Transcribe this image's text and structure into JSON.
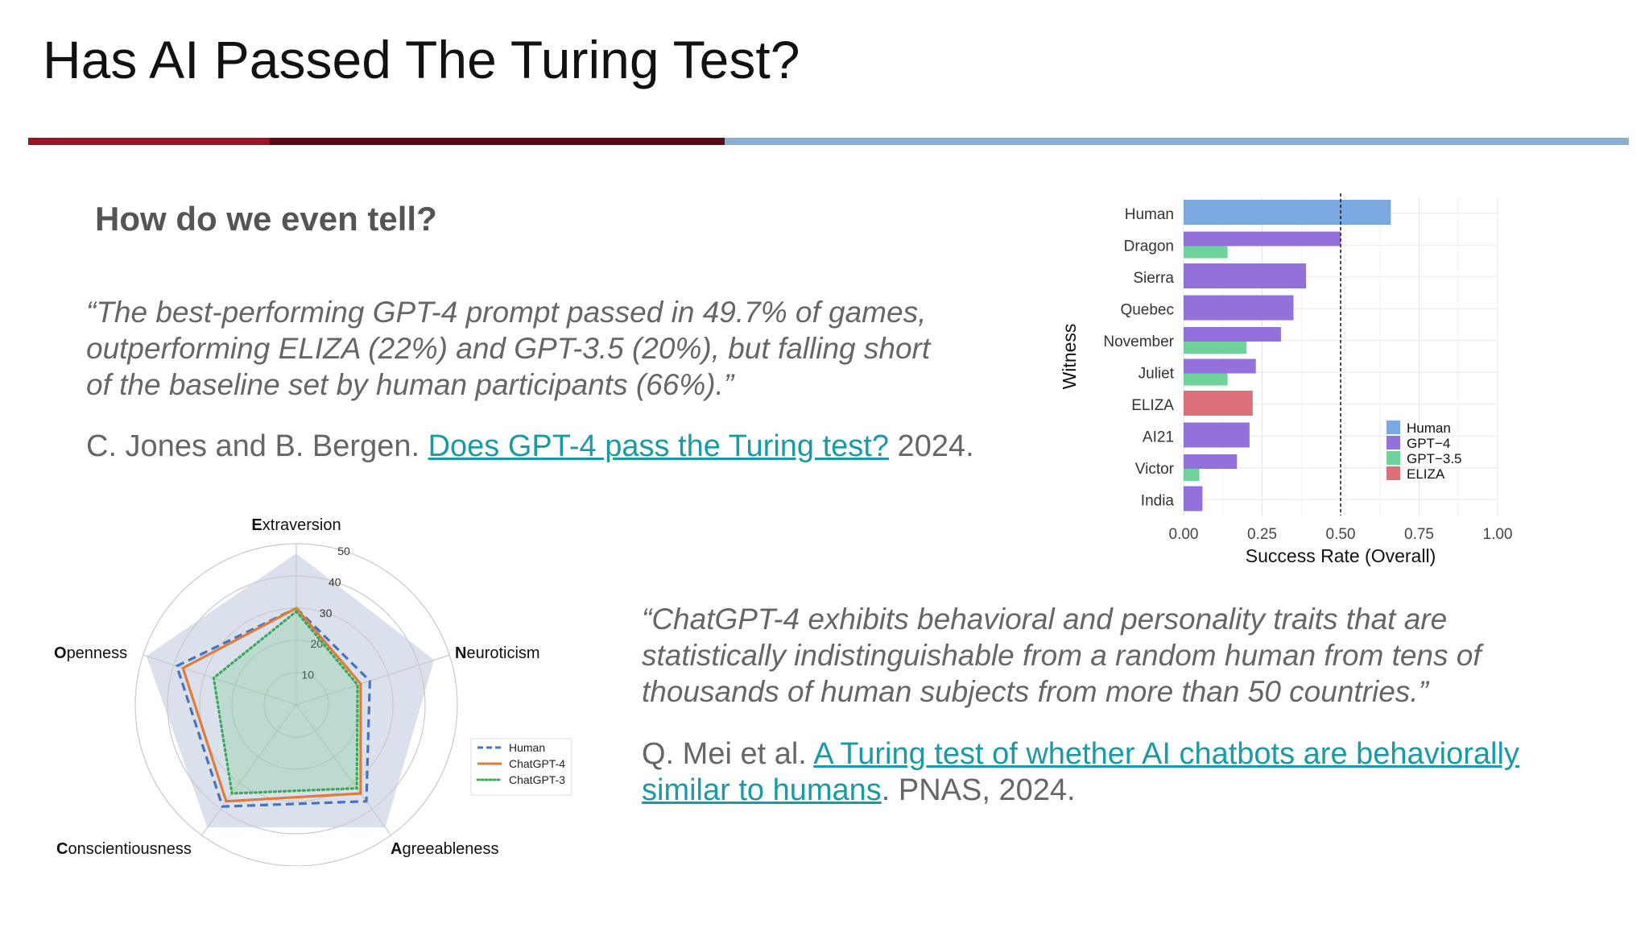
{
  "slide": {
    "title": "Has AI Passed The Turing Test?",
    "subtitle": "How do we even tell?",
    "colors": {
      "rule_red": "#9b1226",
      "rule_dark": "#5a0a12",
      "rule_blue": "#8aaed0",
      "link": "#1a9aa3"
    }
  },
  "quote1": {
    "lines": [
      "“The best-performing GPT-4 prompt passed in 49.7% of games,",
      "outperforming ELIZA (22%) and GPT-3.5 (20%), but falling short",
      "of the baseline set by human participants (66%).”"
    ],
    "cite_pre": "C. Jones and B. Bergen. ",
    "cite_link": "Does GPT-4 pass the Turing test?",
    "cite_post": " 2024."
  },
  "quote2": {
    "lines": [
      "“ChatGPT-4 exhibits behavioral and personality traits that are",
      "statistically indistinguishable from a random human from tens of",
      "thousands of human subjects from more than 50 countries.”"
    ],
    "cite_pre": "Q. Mei et al. ",
    "cite_link_1": "A Turing test of whether AI chatbots are behaviorally",
    "cite_link_2": "similar to humans",
    "cite_post": ". PNAS, 2024."
  },
  "chart_data": [
    {
      "type": "bar",
      "orientation": "horizontal",
      "xlabel": "Success Rate (Overall)",
      "ylabel": "Witness",
      "xlim": [
        0,
        1
      ],
      "xticks": [
        "0.00",
        "0.25",
        "0.50",
        "0.75",
        "1.00"
      ],
      "reference_line": 0.5,
      "grid": true,
      "legend_position": "right",
      "legend": [
        {
          "name": "Human",
          "color": "#7aa9e0"
        },
        {
          "name": "GPT−4",
          "color": "#9370db"
        },
        {
          "name": "GPT−3.5",
          "color": "#6dd39a"
        },
        {
          "name": "ELIZA",
          "color": "#dc7079"
        }
      ],
      "categories": [
        "Human",
        "Dragon",
        "Sierra",
        "Quebec",
        "November",
        "Juliet",
        "ELIZA",
        "AI21",
        "Victor",
        "India"
      ],
      "bars": [
        {
          "witness": "Human",
          "model": "Human",
          "value": 0.66
        },
        {
          "witness": "Dragon",
          "model": "GPT−4",
          "value": 0.5
        },
        {
          "witness": "Dragon",
          "model": "GPT−3.5",
          "value": 0.14
        },
        {
          "witness": "Sierra",
          "model": "GPT−4",
          "value": 0.39
        },
        {
          "witness": "Quebec",
          "model": "GPT−4",
          "value": 0.35
        },
        {
          "witness": "November",
          "model": "GPT−4",
          "value": 0.31
        },
        {
          "witness": "November",
          "model": "GPT−3.5",
          "value": 0.2
        },
        {
          "witness": "Juliet",
          "model": "GPT−4",
          "value": 0.23
        },
        {
          "witness": "Juliet",
          "model": "GPT−3.5",
          "value": 0.14
        },
        {
          "witness": "ELIZA",
          "model": "ELIZA",
          "value": 0.22
        },
        {
          "witness": "AI21",
          "model": "GPT−4",
          "value": 0.21
        },
        {
          "witness": "Victor",
          "model": "GPT−4",
          "value": 0.17
        },
        {
          "witness": "Victor",
          "model": "GPT−3.5",
          "value": 0.05
        },
        {
          "witness": "India",
          "model": "GPT−4",
          "value": 0.06
        }
      ]
    },
    {
      "type": "radar",
      "axes": [
        "Extraversion",
        "Neuroticism",
        "Agreeableness",
        "Conscientiousness",
        "Openness"
      ],
      "rlim": [
        0,
        50
      ],
      "rticks": [
        "10",
        "20",
        "30",
        "40",
        "50"
      ],
      "legend_position": "right",
      "shaded_range": {
        "values": [
          47,
          45,
          47,
          47,
          49
        ],
        "color": "#dae1ed"
      },
      "series": [
        {
          "name": "Human",
          "color": "#4472c4",
          "style": "dashed",
          "values": [
            30,
            24,
            37,
            39,
            39
          ]
        },
        {
          "name": "ChatGPT-4",
          "color": "#e07b39",
          "style": "solid",
          "values": [
            30,
            21,
            34,
            37,
            37
          ]
        },
        {
          "name": "ChatGPT-3",
          "color": "#3aaa5a",
          "style": "dotted",
          "values": [
            29,
            20,
            32,
            34,
            27
          ]
        }
      ]
    }
  ]
}
